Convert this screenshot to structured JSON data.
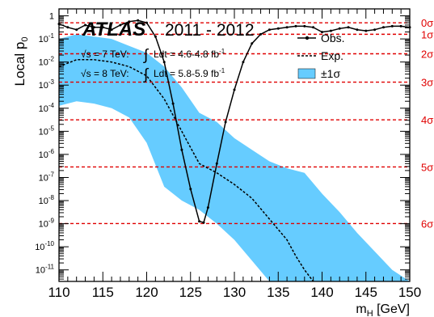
{
  "chart_data": {
    "type": "line",
    "experiment": "ATLAS",
    "period": "2011 - 2012",
    "lumi_lines": [
      {
        "sqrt": "√s",
        "energy": "= 7 TeV:",
        "int": "∫",
        "lumi": "Ldt = 4.6-4.8 fb",
        "exp": "-1"
      },
      {
        "sqrt": "√s",
        "energy": "= 8 TeV:",
        "int": "∫",
        "lumi": "Ldt = 5.8-5.9 fb",
        "exp": "-1"
      }
    ],
    "xlabel_main": "m",
    "xlabel_sub": "H",
    "xlabel_unit": " [GeV]",
    "ylabel_main": "Local p",
    "ylabel_sub": "0",
    "xlim": [
      110,
      150
    ],
    "ylim_log10": [
      -11.5,
      0.3
    ],
    "log_y": true,
    "x_ticks": [
      "110",
      "115",
      "120",
      "125",
      "130",
      "135",
      "140",
      "145",
      "150"
    ],
    "y_ticks": [
      {
        "base": "1",
        "exp": ""
      },
      {
        "base": "10",
        "exp": "-1"
      },
      {
        "base": "10",
        "exp": "-2"
      },
      {
        "base": "10",
        "exp": "-3"
      },
      {
        "base": "10",
        "exp": "-4"
      },
      {
        "base": "10",
        "exp": "-5"
      },
      {
        "base": "10",
        "exp": "-6"
      },
      {
        "base": "10",
        "exp": "-7"
      },
      {
        "base": "10",
        "exp": "-8"
      },
      {
        "base": "10",
        "exp": "-9"
      },
      {
        "base": "10",
        "exp": "-10"
      },
      {
        "base": "10",
        "exp": "-11"
      }
    ],
    "sigma_lines": [
      {
        "label": "0σ",
        "log10p": -0.301
      },
      {
        "label": "1σ",
        "log10p": -0.799
      },
      {
        "label": "2σ",
        "log10p": -1.643
      },
      {
        "label": "3σ",
        "log10p": -2.87
      },
      {
        "label": "4σ",
        "log10p": -4.502
      },
      {
        "label": "5σ",
        "log10p": -6.543
      },
      {
        "label": "6σ",
        "log10p": -8.994
      }
    ],
    "legend": [
      {
        "key": "obs",
        "label": "Obs."
      },
      {
        "key": "exp",
        "label": "Exp."
      },
      {
        "key": "band",
        "label": "±1σ"
      }
    ],
    "legend_position": "top-right",
    "series": [
      {
        "name": "Obs.",
        "style": "solid-markers",
        "x": [
          110,
          111,
          112,
          113,
          114,
          115,
          116,
          117,
          118,
          119,
          120,
          121,
          122,
          123,
          124,
          125,
          126,
          126.5,
          127,
          128,
          129,
          130,
          131,
          132,
          133,
          134,
          135,
          136,
          137,
          138,
          139,
          140,
          141,
          142,
          143,
          144,
          145,
          146,
          147,
          148,
          149,
          150
        ],
        "log10p": [
          -0.35,
          -0.5,
          -0.6,
          -0.4,
          -0.5,
          -0.5,
          -0.6,
          -0.4,
          -0.25,
          -0.2,
          -0.3,
          -0.9,
          -2.0,
          -3.8,
          -5.8,
          -7.5,
          -8.9,
          -8.95,
          -8.3,
          -6.4,
          -4.6,
          -3.2,
          -2.0,
          -1.2,
          -0.8,
          -0.6,
          -0.55,
          -0.5,
          -0.45,
          -0.45,
          -0.5,
          -0.7,
          -0.65,
          -0.55,
          -0.5,
          -0.6,
          -0.65,
          -0.6,
          -0.5,
          -0.45,
          -0.45,
          -0.5
        ]
      },
      {
        "name": "Exp.",
        "style": "dashed",
        "x": [
          110,
          112,
          114,
          116,
          118,
          120,
          122,
          124,
          126,
          128,
          130,
          132,
          134,
          136,
          137,
          138,
          139
        ],
        "log10p": [
          -2.2,
          -1.9,
          -1.9,
          -2.0,
          -2.2,
          -2.6,
          -3.6,
          -5.0,
          -6.4,
          -6.8,
          -7.3,
          -7.9,
          -8.8,
          -9.7,
          -10.4,
          -11.0,
          -11.5
        ]
      }
    ],
    "band": {
      "name": "±1σ",
      "color": "#66ccff",
      "x": [
        110,
        112,
        114,
        116,
        118,
        120,
        122,
        124,
        126,
        128,
        130,
        132,
        134,
        136,
        138,
        140,
        142,
        144,
        146,
        148,
        150
      ],
      "upper": [
        -1.0,
        -0.8,
        -0.9,
        -1.0,
        -1.3,
        -1.6,
        -2.2,
        -3.1,
        -4.2,
        -4.6,
        -5.3,
        -5.8,
        -6.3,
        -6.6,
        -6.8,
        -7.7,
        -8.5,
        -9.4,
        -10.2,
        -11.0,
        -11.5
      ],
      "lower": [
        -3.9,
        -3.7,
        -3.8,
        -4.0,
        -4.4,
        -5.5,
        -7.4,
        -8.0,
        -8.4,
        -9.0,
        -9.7,
        -10.6,
        -11.5,
        -11.5,
        -11.5,
        -11.5,
        -11.5,
        -11.5,
        -11.5,
        -11.5,
        -11.5
      ]
    },
    "colors": {
      "sigma_lines": "#e00000",
      "band": "#66ccff",
      "observed": "#000000"
    },
    "grid": false
  }
}
